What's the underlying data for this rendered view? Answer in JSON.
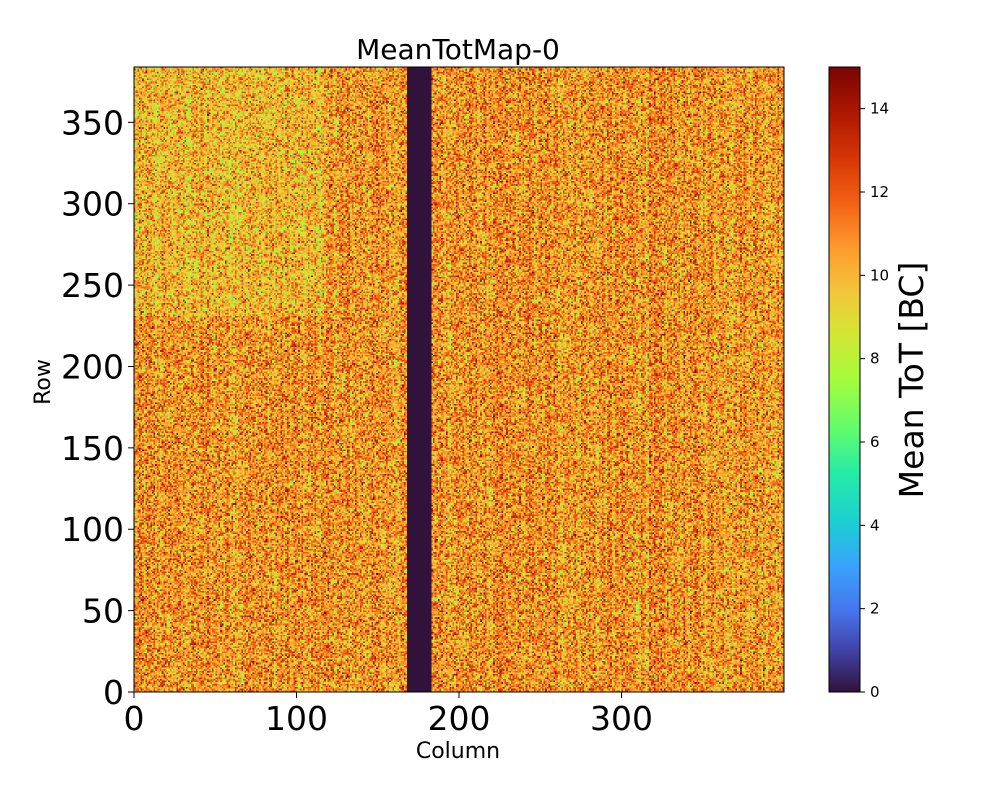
{
  "chart_data": {
    "type": "heatmap",
    "title": "MeanTotMap-0",
    "xlabel": "Column",
    "ylabel": "Row",
    "xlim": [
      0,
      400
    ],
    "ylim": [
      0,
      384
    ],
    "xticks": [
      0,
      100,
      200,
      300
    ],
    "yticks": [
      0,
      50,
      100,
      150,
      200,
      250,
      300,
      350
    ],
    "colormap": "turbo",
    "colorbar": {
      "label": "Mean ToT [BC]",
      "range": [
        0,
        15
      ],
      "ticks": [
        0,
        2,
        4,
        6,
        8,
        10,
        12,
        14
      ]
    },
    "dead_columns": [
      168,
      183
    ],
    "dead_value": 0,
    "typical_value_range": [
      7,
      15
    ],
    "typical_mean": 10.8
  }
}
